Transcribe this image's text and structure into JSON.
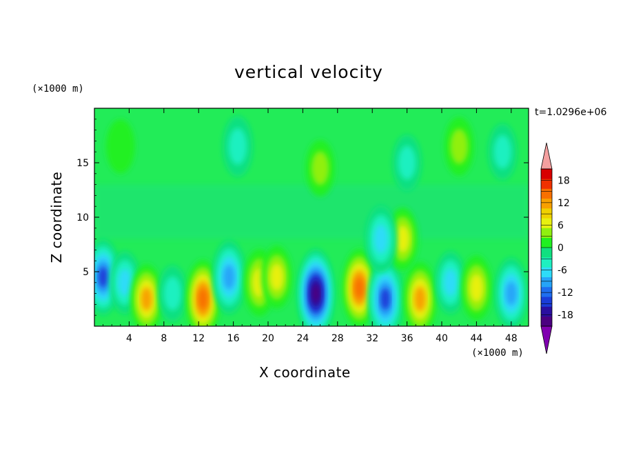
{
  "chart_data": {
    "type": "heatmap",
    "title": "vertical velocity",
    "xlabel": "X coordinate",
    "ylabel": "Z coordinate",
    "x_unit_label": "(×1000 m)",
    "z_unit_label": "(×1000 m)",
    "time_label": "t=1.0296e+06",
    "xlim": [
      0,
      50
    ],
    "ylim": [
      0,
      20
    ],
    "x_ticks": [
      "4",
      "8",
      "12",
      "16",
      "20",
      "24",
      "28",
      "32",
      "36",
      "40",
      "44",
      "48"
    ],
    "y_ticks": [
      "5",
      "10",
      "15"
    ],
    "colorbar": {
      "min": -21,
      "max": 21,
      "step": 3,
      "tick_labels": [
        "18",
        "12",
        "6",
        "0",
        "-6",
        "-12",
        "-18"
      ],
      "colors": [
        "#8000b0",
        "#4b0080",
        "#2a0fa0",
        "#1a3cd8",
        "#1e6ef0",
        "#26a4f8",
        "#2edcf8",
        "#1ef0c0",
        "#10e080",
        "#20f020",
        "#90f010",
        "#e8f010",
        "#f0d000",
        "#f8a000",
        "#f87000",
        "#f03000",
        "#d80000",
        "#f4a0a0"
      ]
    },
    "cells": [
      {
        "x": 1,
        "z": 4.5,
        "w": -12
      },
      {
        "x": 3.5,
        "z": 4,
        "w": -6
      },
      {
        "x": 6,
        "z": 2.5,
        "w": 9
      },
      {
        "x": 9,
        "z": 3,
        "w": -3
      },
      {
        "x": 12.5,
        "z": 2.5,
        "w": 13
      },
      {
        "x": 15.5,
        "z": 4.5,
        "w": -11
      },
      {
        "x": 19,
        "z": 4,
        "w": 8
      },
      {
        "x": 21,
        "z": 4.5,
        "w": 6
      },
      {
        "x": 25.5,
        "z": 3,
        "w": -18
      },
      {
        "x": 30.5,
        "z": 3.5,
        "w": 13
      },
      {
        "x": 33.5,
        "z": 2.5,
        "w": -14
      },
      {
        "x": 37.5,
        "z": 2.5,
        "w": 11
      },
      {
        "x": 41,
        "z": 4,
        "w": -6
      },
      {
        "x": 44,
        "z": 3.5,
        "w": 7
      },
      {
        "x": 48,
        "z": 3,
        "w": -10
      },
      {
        "x": 35.5,
        "z": 8,
        "w": 6
      },
      {
        "x": 33,
        "z": 8,
        "w": -8
      },
      {
        "x": 3,
        "z": 16.5,
        "w": 2
      },
      {
        "x": 16.5,
        "z": 16.5,
        "w": -5
      },
      {
        "x": 26,
        "z": 14.5,
        "w": 3
      },
      {
        "x": 42,
        "z": 16.5,
        "w": 4
      },
      {
        "x": 36,
        "z": 15,
        "w": -3
      },
      {
        "x": 47,
        "z": 16,
        "w": -3
      }
    ]
  }
}
